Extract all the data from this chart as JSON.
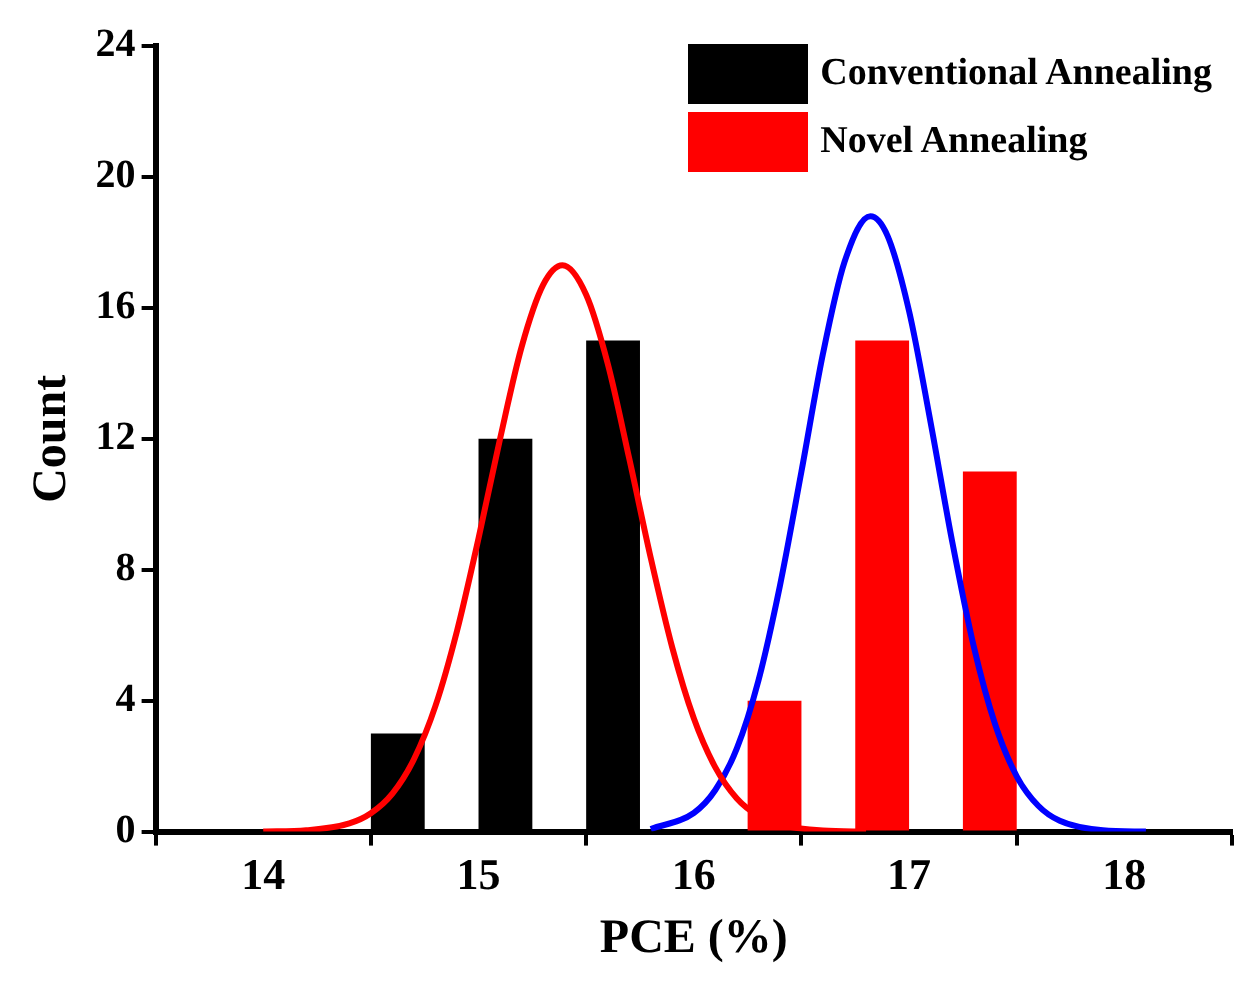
{
  "chart_data": {
    "type": "bar",
    "xlabel": "PCE (%)",
    "ylabel": "Count",
    "xlim": [
      13.5,
      18.5
    ],
    "xticks": [
      14,
      15,
      16,
      17,
      18
    ],
    "ylim": [
      0,
      24
    ],
    "yticks": [
      0,
      4,
      8,
      12,
      16,
      20,
      24
    ],
    "grid": false,
    "legend": "top right",
    "series": [
      {
        "name": "Conventional Annealing",
        "color": "#000000",
        "x": [
          14.625,
          15.125,
          15.625
        ],
        "values": [
          3,
          12,
          15
        ]
      },
      {
        "name": "Novel Annealing",
        "color": "#ff0000",
        "x": [
          16.375,
          16.875,
          17.375
        ],
        "values": [
          4,
          15,
          11
        ]
      },
      {
        "type": "line",
        "color": "#ff0000",
        "marker": "none",
        "x": [
          14.0,
          14.2,
          14.4,
          14.5,
          14.6,
          14.7,
          14.8,
          14.9,
          15.0,
          15.1,
          15.2,
          15.3,
          15.39,
          15.5,
          15.6,
          15.7,
          15.8,
          15.9,
          16.0,
          16.1,
          16.2,
          16.3,
          16.4,
          16.6,
          16.8
        ],
        "values": [
          0.0,
          0.04,
          0.25,
          0.56,
          1.16,
          2.21,
          3.84,
          6.13,
          8.96,
          12.0,
          14.8,
          16.7,
          17.3,
          16.4,
          14.3,
          11.4,
          8.36,
          5.62,
          3.46,
          1.96,
          1.01,
          0.48,
          0.21,
          0.03,
          0.0
        ]
      },
      {
        "type": "line",
        "color": "#0000ff",
        "marker": "none",
        "x": [
          15.8,
          16.0,
          16.1,
          16.2,
          16.3,
          16.4,
          16.5,
          16.6,
          16.7,
          16.82,
          16.9,
          17.0,
          17.1,
          17.2,
          17.3,
          17.4,
          17.5,
          17.6,
          17.7,
          17.9,
          18.1
        ],
        "values": [
          0.08,
          0.57,
          1.27,
          2.54,
          4.61,
          7.51,
          11.0,
          14.6,
          17.4,
          18.8,
          18.2,
          15.9,
          12.5,
          8.87,
          5.67,
          3.27,
          1.69,
          0.79,
          0.33,
          0.04,
          0.0
        ]
      }
    ]
  }
}
